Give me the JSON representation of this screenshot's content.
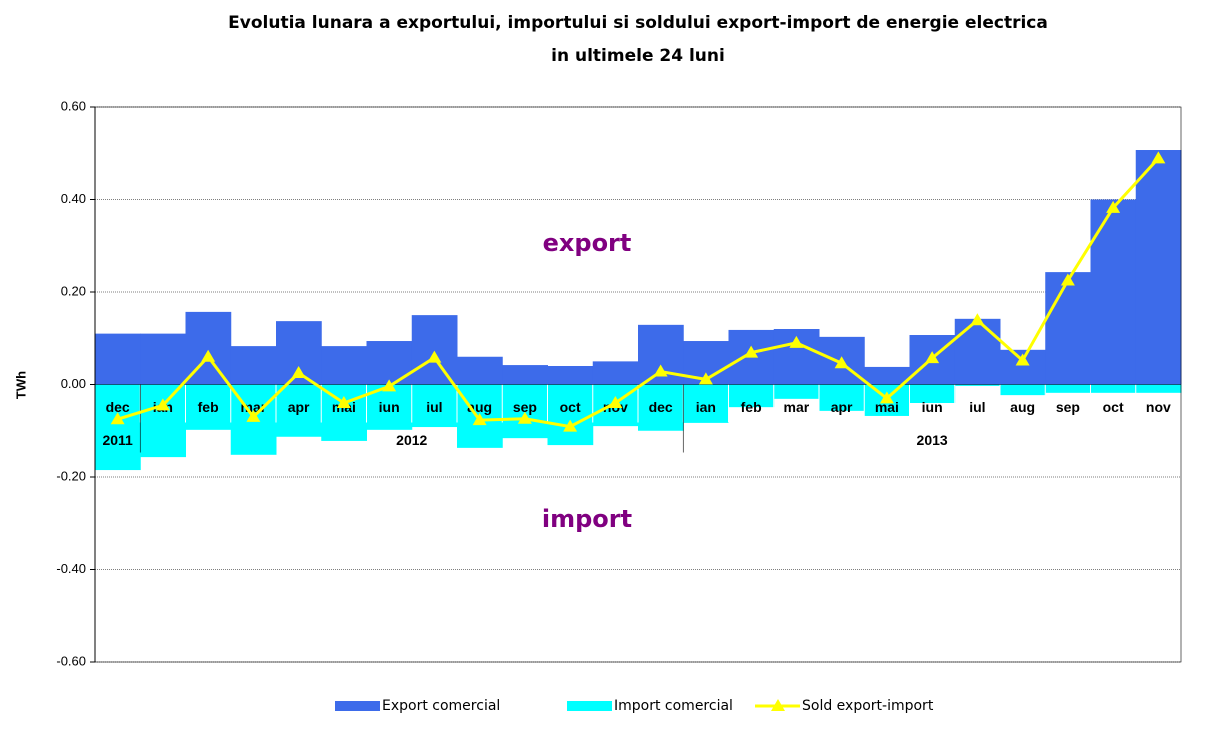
{
  "chart_data": {
    "type": "bar-line",
    "title_lines": [
      "Evolutia lunara a exportului, importului si soldului export-import de energie electrica",
      "in ultimele 24 luni"
    ],
    "y_label": "TWh",
    "categories": [
      "dec",
      "ian",
      "feb",
      "mar",
      "apr",
      "mai",
      "iun",
      "iul",
      "aug",
      "sep",
      "oct",
      "nov",
      "dec",
      "ian",
      "feb",
      "mar",
      "apr",
      "mai",
      "iun",
      "iul",
      "aug",
      "sep",
      "oct",
      "nov"
    ],
    "x_groups": [
      {
        "label": "2011",
        "size": 1
      },
      {
        "label": "2012",
        "size": 12
      },
      {
        "label": "2013",
        "size": 11
      }
    ],
    "series": [
      {
        "name": "Export comercial",
        "type": "bar",
        "color": "#3d6bea",
        "values": [
          0.11,
          0.11,
          0.157,
          0.083,
          0.137,
          0.083,
          0.094,
          0.15,
          0.06,
          0.042,
          0.04,
          0.05,
          0.129,
          0.094,
          0.118,
          0.12,
          0.103,
          0.038,
          0.107,
          0.142,
          0.075,
          0.243,
          0.4,
          0.507
        ]
      },
      {
        "name": "Import comercial",
        "type": "bar",
        "color": "#00ffff",
        "values": [
          -0.185,
          -0.157,
          -0.098,
          -0.152,
          -0.113,
          -0.122,
          -0.098,
          -0.092,
          -0.137,
          -0.116,
          -0.131,
          -0.09,
          -0.1,
          -0.083,
          -0.049,
          -0.031,
          -0.057,
          -0.068,
          -0.04,
          -0.003,
          -0.023,
          -0.018,
          -0.018,
          -0.018
        ]
      },
      {
        "name": "Sold export-import",
        "type": "line",
        "color": "#ffff00",
        "values": [
          -0.075,
          -0.045,
          0.06,
          -0.07,
          0.025,
          -0.04,
          -0.004,
          0.058,
          -0.077,
          -0.074,
          -0.091,
          -0.04,
          0.028,
          0.011,
          0.069,
          0.09,
          0.046,
          -0.03,
          0.057,
          0.139,
          0.052,
          0.225,
          0.382,
          0.489
        ]
      }
    ],
    "annotations": [
      "export",
      "import"
    ],
    "ylim": [
      -0.6,
      0.6
    ],
    "yticks": [
      {
        "value": -0.6,
        "label": "-0.60"
      },
      {
        "value": -0.4,
        "label": "-0.40"
      },
      {
        "value": -0.2,
        "label": "-0.20"
      },
      {
        "value": 0,
        "label": "0.00"
      },
      {
        "value": 0.2,
        "label": "0.20"
      },
      {
        "value": 0.4,
        "label": "0.40"
      },
      {
        "value": 0.6,
        "label": "0.60"
      }
    ],
    "grid": true
  }
}
